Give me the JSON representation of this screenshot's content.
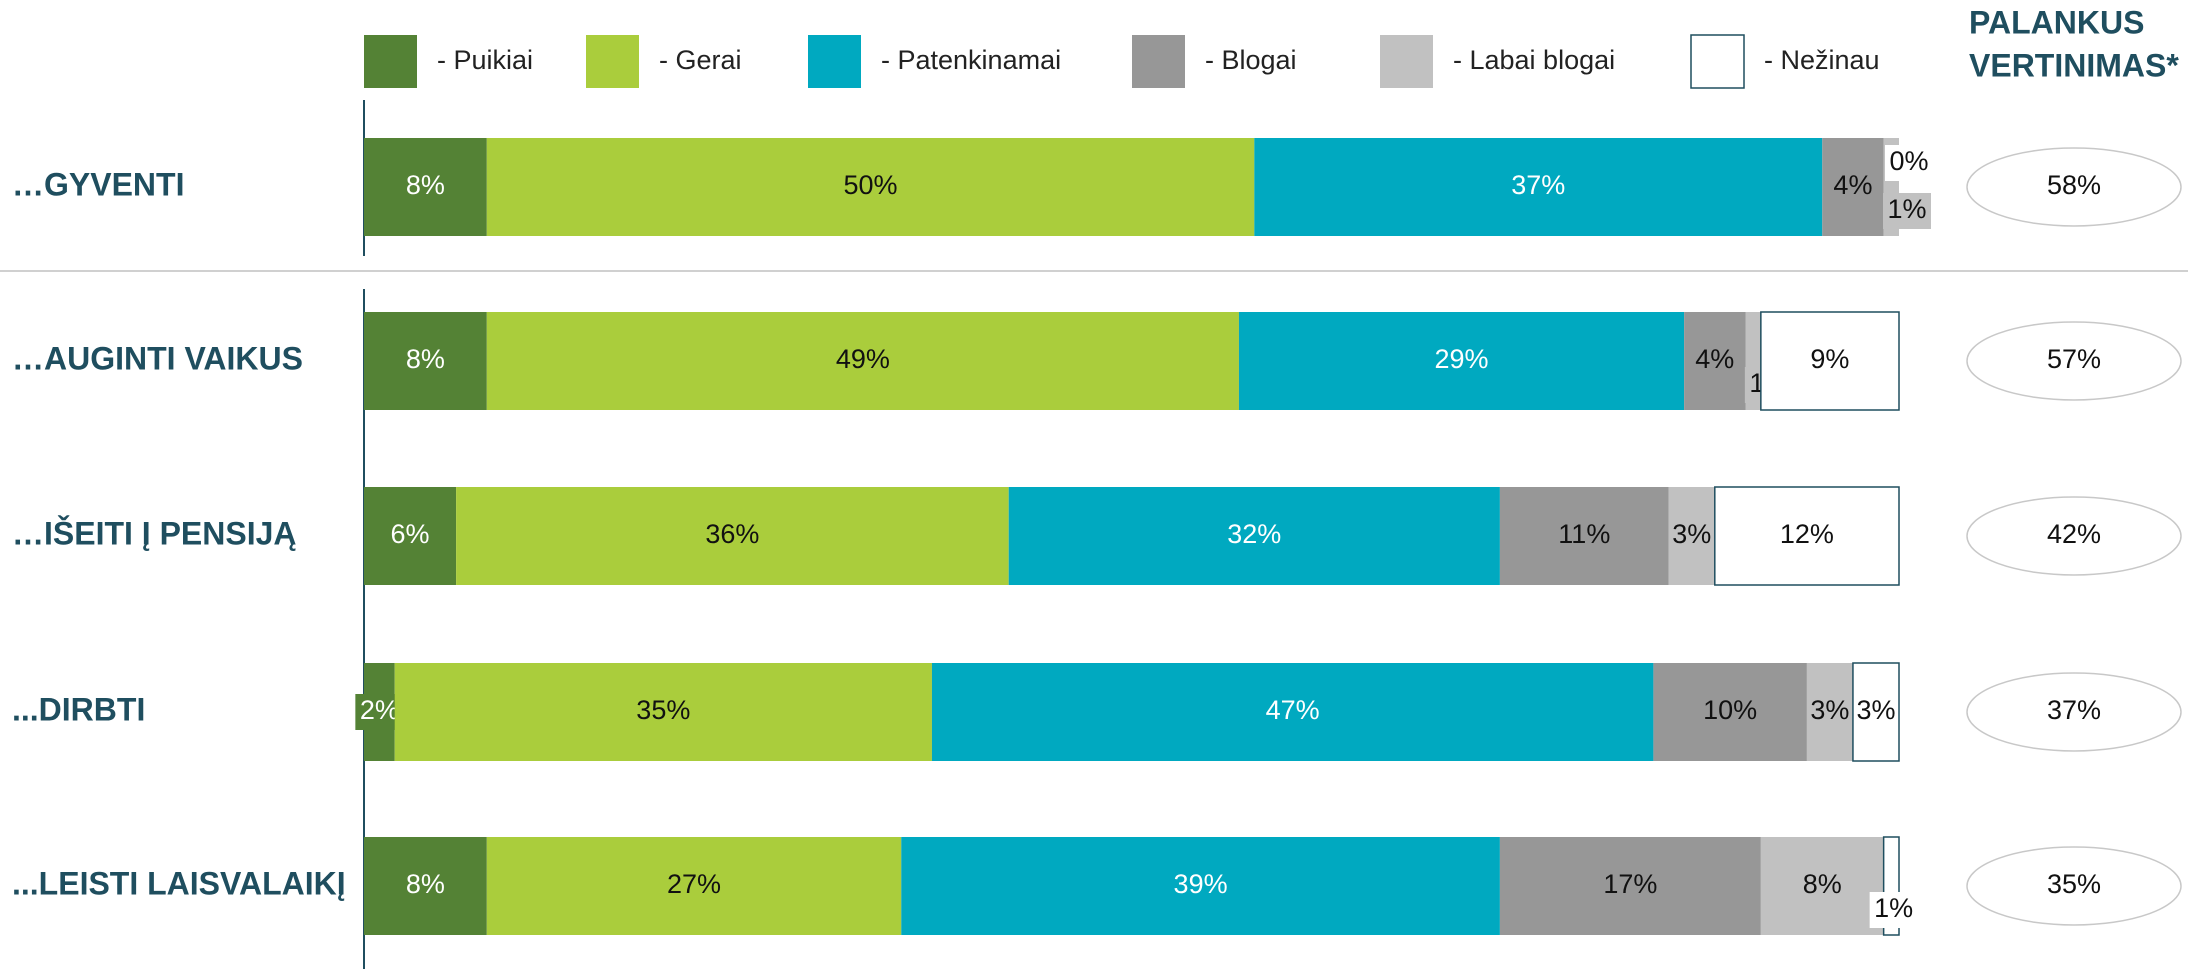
{
  "chart_data": {
    "type": "stacked-bar-horizontal",
    "categories": [
      "…GYVENTI",
      "…AUGINTI VAIKUS",
      "…IŠEITI Į PENSIJĄ",
      "...DIRBTI",
      "...LEISTI LAISVALAIKĮ"
    ],
    "series": [
      {
        "name": "- Puikiai",
        "color": "#548235",
        "values": [
          8,
          8,
          6,
          2,
          8
        ],
        "value_labels": [
          "8%",
          "8%",
          "6%",
          "2%",
          "8%"
        ]
      },
      {
        "name": "- Gerai",
        "color": "#aacd3c",
        "values": [
          50,
          49,
          36,
          35,
          27
        ],
        "value_labels": [
          "50%",
          "49%",
          "36%",
          "35%",
          "27%"
        ]
      },
      {
        "name": "- Patenkinamai",
        "color": "#00a9c0",
        "values": [
          37,
          29,
          32,
          47,
          39
        ],
        "value_labels": [
          "37%",
          "29%",
          "32%",
          "47%",
          "39%"
        ]
      },
      {
        "name": "- Blogai",
        "color": "#979797",
        "values": [
          4,
          4,
          11,
          10,
          17
        ],
        "value_labels": [
          "4%",
          "4%",
          "11%",
          "10%",
          "17%"
        ]
      },
      {
        "name": "- Labai blogai",
        "color": "#c1c1c1",
        "values": [
          1,
          1,
          3,
          3,
          8
        ],
        "value_labels": [
          "1%",
          "1%",
          "3%",
          "3%",
          "8%"
        ]
      },
      {
        "name": "- Nežinau",
        "color": "#ffffff",
        "values": [
          0,
          9,
          12,
          3,
          1
        ],
        "value_labels": [
          "0%",
          "9%",
          "12%",
          "3%",
          "1%"
        ]
      }
    ],
    "xlim": [
      0,
      100
    ],
    "favorable_header": [
      "PALANKUS",
      "VERTINIMAS*"
    ],
    "favorable": [
      58,
      57,
      42,
      37,
      35
    ],
    "favorable_labels": [
      "58%",
      "57%",
      "42%",
      "37%",
      "35%"
    ]
  }
}
